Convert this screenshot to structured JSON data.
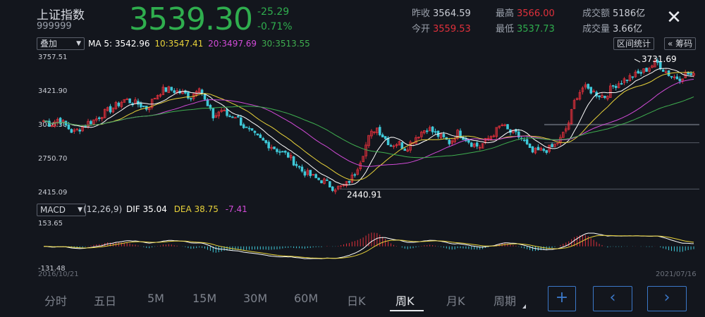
{
  "header": {
    "name": "上证指数",
    "code": "999999",
    "price": "3539.30",
    "change": "-25.29",
    "change_pct": "-0.71%",
    "prev_close_label": "昨收",
    "prev_close": "3564.59",
    "open_label": "今开",
    "open": "3559.53",
    "high_label": "最高",
    "high": "3566.00",
    "low_label": "最低",
    "low": "3537.73",
    "turnover_label": "成交额",
    "turnover": "5186亿",
    "volume_label": "成交量",
    "volume": "3.66亿",
    "close_icon": "close-icon"
  },
  "controls": {
    "overlay_label": "叠加",
    "range_stats_label": "区间统计",
    "chips_label": "« 筹码",
    "ma_prefix": "MA 5:",
    "ma5": "3542.96",
    "ma10": "10:3547.41",
    "ma20": "20:3497.69",
    "ma30": "30:3513.55",
    "macd_label": "MACD",
    "macd_params": "(12,26,9)",
    "dif": "DIF  35.04",
    "dea": "DEA  38.75",
    "macd_val": "-7.41"
  },
  "colors": {
    "up": "#e0303b",
    "down": "#3ec8d8",
    "ma5": "#ffffff",
    "ma10": "#e8d23a",
    "ma20": "#d24bd8",
    "ma30": "#3fae4f",
    "price_green": "#2fae4e",
    "price_red": "#e0303b"
  },
  "chart_data": [
    {
      "type": "candlestick",
      "title": "",
      "y_ticks": [
        "3757.51",
        "3421.90",
        "3086.30",
        "2750.70",
        "2415.09"
      ],
      "ylim": [
        2415.09,
        3757.51
      ],
      "x_start_label": "2016/10/21",
      "x_end_label": "2021/07/16",
      "annotations": [
        {
          "text": "3731.69",
          "kind": "max"
        },
        {
          "text": "2440.91",
          "kind": "min"
        }
      ],
      "close_path": [
        3120,
        3080,
        3140,
        3070,
        3000,
        3050,
        3100,
        3130,
        3190,
        3230,
        3280,
        3330,
        3300,
        3280,
        3240,
        3350,
        3420,
        3430,
        3410,
        3390,
        3350,
        3480,
        3280,
        3150,
        3230,
        3160,
        3170,
        3070,
        3000,
        2950,
        2900,
        2860,
        2810,
        2780,
        2700,
        2620,
        2580,
        2540,
        2520,
        2460,
        2450,
        2490,
        2580,
        2750,
        2950,
        3060,
        2960,
        2880,
        2900,
        2840,
        2930,
        3000,
        3050,
        2990,
        2950,
        2900,
        3000,
        2950,
        2890,
        2860,
        2930,
        3000,
        3080,
        3010,
        2980,
        2920,
        2800,
        2820,
        2830,
        2860,
        2940,
        3080,
        3350,
        3450,
        3420,
        3380,
        3360,
        3460,
        3500,
        3540,
        3570,
        3600,
        3650,
        3700,
        3620,
        3560,
        3540,
        3590,
        3560
      ],
      "series": [
        {
          "name": "MA 5:",
          "kind": "ma",
          "period": 5
        },
        {
          "name": "10:",
          "kind": "ma",
          "period": 10
        },
        {
          "name": "20:",
          "kind": "ma",
          "period": 20
        },
        {
          "name": "30:",
          "kind": "ma",
          "period": 30
        }
      ]
    },
    {
      "type": "macd",
      "y_ticks": [
        "153.65",
        "-131.48"
      ],
      "ylim": [
        -131.48,
        153.65
      ]
    }
  ],
  "tabs": {
    "items": [
      "分时",
      "五日",
      "5M",
      "15M",
      "30M",
      "60M",
      "日K",
      "周K",
      "月K",
      "周期"
    ],
    "active": "周K"
  },
  "nav": {
    "plus": "+",
    "prev": "‹",
    "next": "›"
  }
}
